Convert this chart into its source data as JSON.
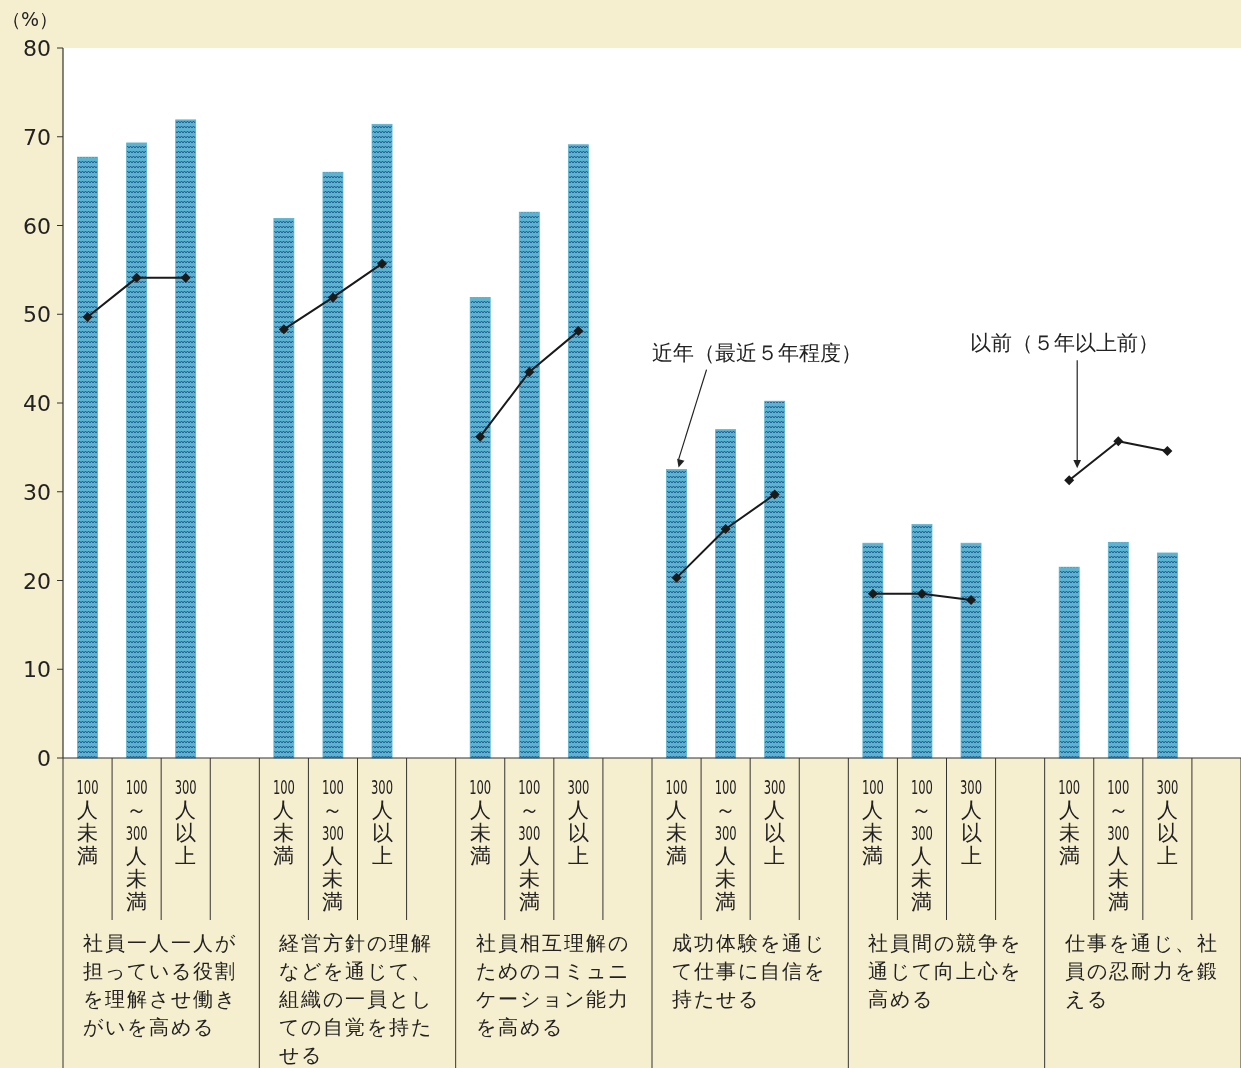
{
  "chart_data": {
    "type": "bar",
    "ylabel": "（%）",
    "ylim": [
      0,
      80
    ],
    "yticks": [
      0,
      10,
      20,
      30,
      40,
      50,
      60,
      70,
      80
    ],
    "categories": [
      "100人未満",
      "100～300人未満",
      "300人以上",
      null,
      "100人未満",
      "100～300人未満",
      "300人以上",
      null,
      "100人未満",
      "100～300人未満",
      "300人以上",
      null,
      "100人未満",
      "100～300人未満",
      "300人以上",
      null,
      "100人未満",
      "100～300人未満",
      "300人以上",
      null,
      "100人未満",
      "100～300人未満",
      "300人以上",
      null
    ],
    "series": [
      {
        "name": "近年（最近５年程度）",
        "color": "#5ab4d0",
        "values": [
          67.7,
          69.3,
          71.9,
          null,
          60.8,
          66.0,
          71.4,
          null,
          51.9,
          61.5,
          69.1,
          null,
          32.5,
          37.0,
          40.2,
          null,
          24.2,
          26.3,
          24.2,
          null,
          21.5,
          24.3,
          23.1,
          null
        ]
      },
      {
        "name": "以前（５年以上前）",
        "type": "line",
        "color": "#1a1a1a",
        "marker": "diamond",
        "values": [
          49.7,
          54.1,
          54.1,
          null,
          48.3,
          51.9,
          55.7,
          null,
          36.2,
          43.5,
          48.1,
          null,
          20.3,
          25.8,
          29.7,
          null,
          18.5,
          18.5,
          17.8,
          null,
          31.3,
          35.7,
          34.6,
          null
        ]
      }
    ],
    "annotations": [
      "社員一人一人が担っている役割を理解させ働きがいを高める",
      "経営方針の理解などを通じて、組織の一員としての自覚を持たせる",
      "社員相互理解のためのコミュニケーション能力を高める",
      "成功体験を通じて仕事に自信を持たせる",
      "社員間の競争を通じて向上心を高める",
      "仕事を通じ、社員の忍耐力を鍛える"
    ]
  }
}
